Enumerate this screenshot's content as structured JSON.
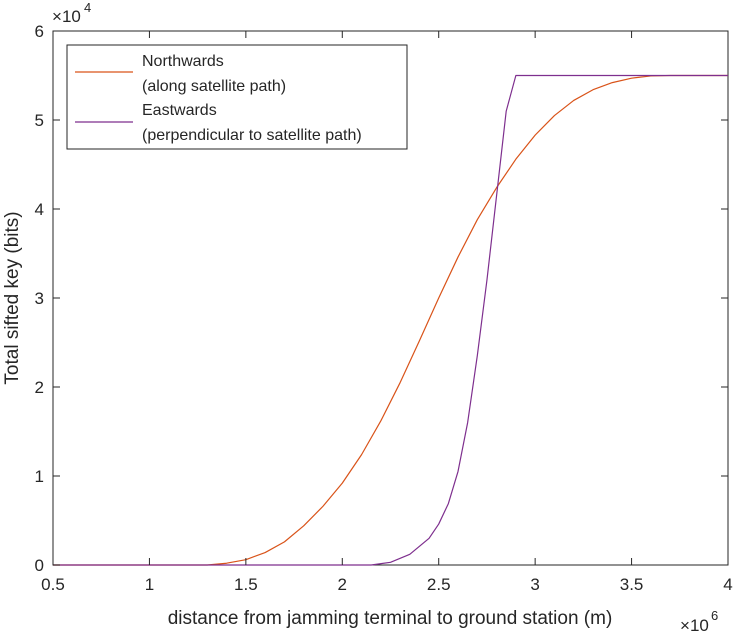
{
  "chart_data": {
    "type": "line",
    "title": "",
    "xlabel": "distance from jamming terminal to ground station (m)",
    "ylabel": "Total sifted key (bits)",
    "x_exponent_label": "10",
    "x_exponent_power": "6",
    "y_exponent_label": "10",
    "y_exponent_power": "4",
    "xlim": [
      500000,
      4000000
    ],
    "ylim": [
      0,
      60000
    ],
    "x_ticks": [
      500000,
      1000000,
      1500000,
      2000000,
      2500000,
      3000000,
      3500000,
      4000000
    ],
    "x_tick_labels": [
      "0.5",
      "1",
      "1.5",
      "2",
      "2.5",
      "3",
      "3.5",
      "4"
    ],
    "y_ticks": [
      0,
      10000,
      20000,
      30000,
      40000,
      50000,
      60000
    ],
    "y_tick_labels": [
      "0",
      "1",
      "2",
      "3",
      "4",
      "5",
      "6"
    ],
    "grid": false,
    "legend_position": "top-left",
    "series": [
      {
        "name": "Northwards",
        "name_line2": "(along satellite path)",
        "color": "#D95319",
        "x": [
          500000,
          1000000,
          1300000,
          1400000,
          1500000,
          1600000,
          1700000,
          1800000,
          1900000,
          2000000,
          2100000,
          2200000,
          2300000,
          2400000,
          2500000,
          2600000,
          2700000,
          2800000,
          2900000,
          3000000,
          3100000,
          3200000,
          3300000,
          3400000,
          3500000,
          3600000,
          3700000,
          4000000
        ],
        "y": [
          0,
          0,
          0,
          200,
          600,
          1400,
          2600,
          4400,
          6600,
          9200,
          12400,
          16200,
          20500,
          25200,
          30000,
          34600,
          38800,
          42400,
          45600,
          48300,
          50500,
          52200,
          53400,
          54200,
          54700,
          54950,
          55000,
          55000
        ]
      },
      {
        "name": "Eastwards",
        "name_line2": "(perpendicular to satellite path)",
        "color": "#7E2F8E",
        "x": [
          500000,
          2000000,
          2150000,
          2250000,
          2350000,
          2450000,
          2500000,
          2550000,
          2600000,
          2650000,
          2700000,
          2750000,
          2800000,
          2850000,
          2900000,
          3000000,
          4000000
        ],
        "y": [
          0,
          0,
          0,
          300,
          1200,
          3000,
          4600,
          6900,
          10500,
          16000,
          23500,
          32000,
          41500,
          51000,
          55000,
          55000,
          55000
        ]
      }
    ]
  }
}
